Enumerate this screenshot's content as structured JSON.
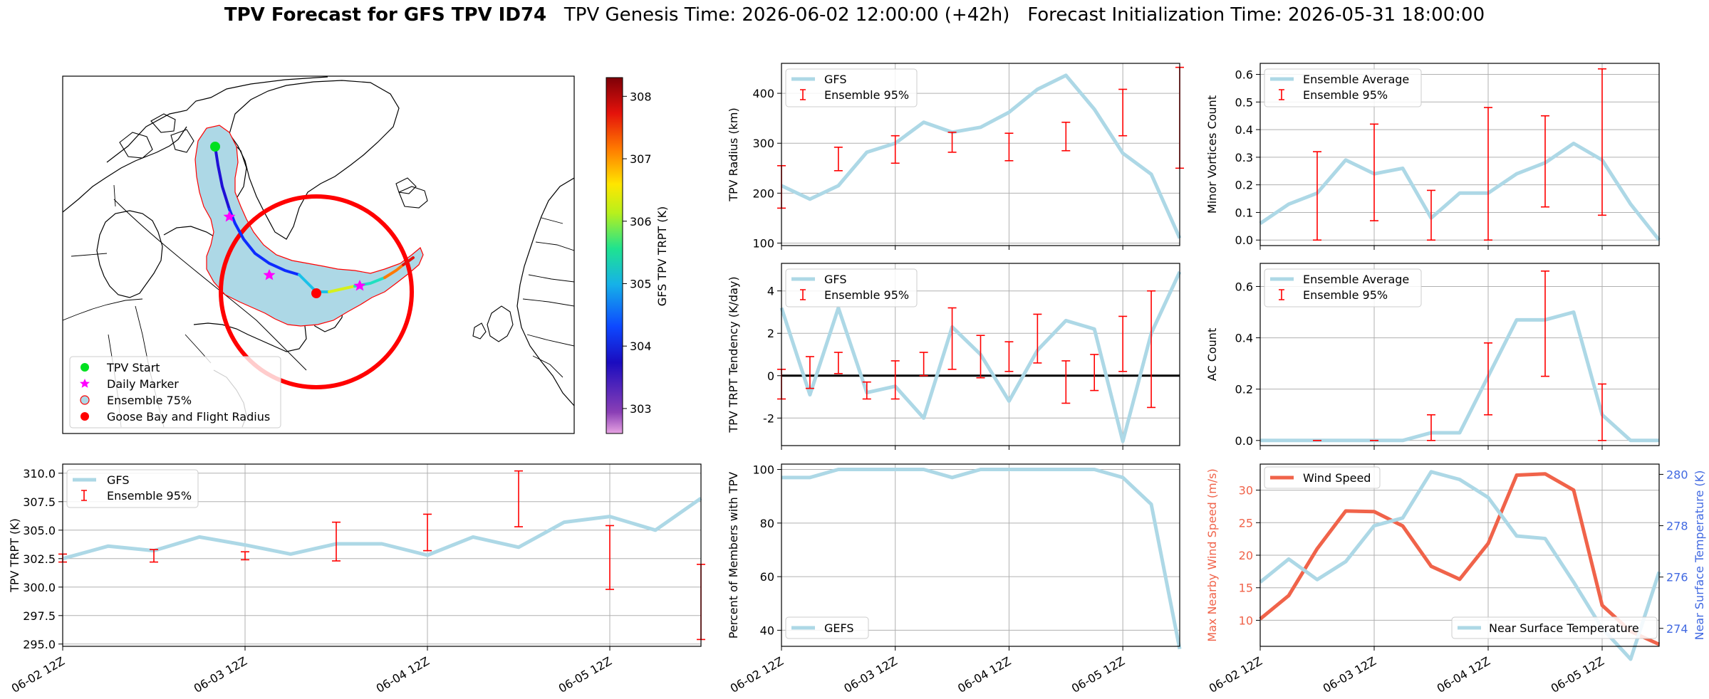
{
  "figure": {
    "title_bold": "TPV Forecast for GFS TPV ID74",
    "title_genesis": "TPV Genesis Time: 2026-06-02 12:00:00 (+42h)",
    "title_init": "Forecast Initialization Time: 2026-05-31 18:00:00"
  },
  "colors": {
    "gfs": "#add8e6",
    "ensemble": "#ff0000",
    "wind": "#f0634a",
    "temp_axis": "#4169e1",
    "goose": "#ff0000"
  },
  "x_tick_labels": [
    "06-02 12Z",
    "06-03 12Z",
    "06-04 12Z",
    "06-05 12Z"
  ],
  "map": {
    "colorbar_label": "GFS TPV TRPT (K)",
    "colorbar_ticks": [
      303,
      304,
      305,
      306,
      307,
      308
    ],
    "colorbar_range": [
      302.6,
      308.3
    ],
    "legend": [
      "TPV Start",
      "Daily Marker",
      "Ensemble 75%",
      "Goose Bay and Flight Radius"
    ]
  },
  "chart_data": [
    {
      "id": "radius",
      "type": "line",
      "ylabel": "TPV Radius (km)",
      "ylim": [
        95,
        460
      ],
      "yticks": [
        100,
        200,
        300,
        400
      ],
      "series": [
        {
          "name": "GFS",
          "values": [
            215,
            188,
            215,
            282,
            300,
            342,
            322,
            332,
            362,
            408,
            436,
            368,
            280,
            238,
            110
          ]
        },
        {
          "name": "Ensemble 95%",
          "type": "errorbar",
          "x": [
            0,
            2,
            4,
            6,
            8,
            10,
            12,
            14
          ],
          "low": [
            170,
            245,
            260,
            282,
            265,
            285,
            315,
            250
          ],
          "high": [
            255,
            292,
            315,
            322,
            320,
            342,
            408,
            452
          ]
        }
      ]
    },
    {
      "id": "minor",
      "type": "line",
      "ylabel": "Minor Vortices Count",
      "ylim": [
        -0.02,
        0.64
      ],
      "yticks": [
        0.0,
        0.1,
        0.2,
        0.3,
        0.4,
        0.5,
        0.6
      ],
      "series": [
        {
          "name": "Ensemble Average",
          "values": [
            0.06,
            0.13,
            0.17,
            0.29,
            0.24,
            0.26,
            0.08,
            0.17,
            0.17,
            0.24,
            0.28,
            0.35,
            0.29,
            0.13,
            0.0
          ]
        },
        {
          "name": "Ensemble 95%",
          "type": "errorbar",
          "x": [
            2,
            4,
            6,
            8,
            10,
            12
          ],
          "low": [
            0.0,
            0.07,
            0.0,
            0.0,
            0.12,
            0.09
          ],
          "high": [
            0.32,
            0.42,
            0.18,
            0.48,
            0.45,
            0.62
          ]
        }
      ]
    },
    {
      "id": "tendency",
      "type": "line",
      "ylabel": "TPV TRPT Tendency (K/day)",
      "ylim": [
        -3.3,
        5.3
      ],
      "yticks": [
        -2,
        0,
        2,
        4
      ],
      "zero_line": true,
      "series": [
        {
          "name": "GFS",
          "values": [
            3.2,
            -0.9,
            3.2,
            -0.8,
            -0.5,
            -2.0,
            2.3,
            1.0,
            -1.2,
            1.2,
            2.6,
            2.2,
            -3.1,
            2.0,
            4.9
          ]
        },
        {
          "name": "Ensemble 95%",
          "type": "errorbar",
          "x": [
            0,
            1,
            2,
            3,
            4,
            5,
            6,
            7,
            8,
            9,
            10,
            11,
            12,
            13
          ],
          "low": [
            -1.1,
            -0.6,
            0.1,
            -1.1,
            -1.1,
            0.0,
            0.3,
            -0.1,
            0.2,
            0.6,
            -1.3,
            -0.7,
            0.2,
            -1.5
          ],
          "high": [
            0.3,
            0.9,
            1.1,
            -0.3,
            0.7,
            1.1,
            3.2,
            1.9,
            1.6,
            2.9,
            0.7,
            1.0,
            2.8,
            4.0
          ]
        }
      ]
    },
    {
      "id": "ac",
      "type": "line",
      "ylabel": "AC Count",
      "ylim": [
        -0.02,
        0.69
      ],
      "yticks": [
        0.0,
        0.2,
        0.4,
        0.6
      ],
      "series": [
        {
          "name": "Ensemble Average",
          "values": [
            0.0,
            0.0,
            0.0,
            0.0,
            0.0,
            0.0,
            0.03,
            0.03,
            0.25,
            0.47,
            0.47,
            0.5,
            0.1,
            0.0,
            0.0
          ]
        },
        {
          "name": "Ensemble 95%",
          "type": "errorbar",
          "x": [
            2,
            4,
            6,
            8,
            10,
            12
          ],
          "low": [
            0.0,
            0.0,
            0.0,
            0.1,
            0.25,
            0.0
          ],
          "high": [
            0.0,
            0.0,
            0.1,
            0.38,
            0.66,
            0.22
          ]
        }
      ]
    },
    {
      "id": "trpt",
      "type": "line",
      "ylabel": "TPV TRPT (K)",
      "ylim": [
        294.8,
        310.8
      ],
      "yticks": [
        295.0,
        297.5,
        300.0,
        302.5,
        305.0,
        307.5,
        310.0
      ],
      "series": [
        {
          "name": "GFS",
          "values": [
            302.5,
            303.6,
            303.2,
            304.4,
            303.7,
            302.9,
            303.8,
            303.8,
            302.8,
            304.4,
            303.5,
            305.7,
            306.2,
            305.0,
            307.8
          ]
        },
        {
          "name": "Ensemble 95%",
          "type": "errorbar",
          "x": [
            0,
            2,
            4,
            6,
            8,
            10,
            12,
            14
          ],
          "low": [
            302.2,
            302.2,
            302.4,
            302.3,
            303.2,
            305.3,
            299.8,
            295.4
          ],
          "high": [
            302.9,
            303.3,
            303.1,
            305.7,
            306.4,
            310.2,
            305.4,
            302.0
          ]
        }
      ]
    },
    {
      "id": "members",
      "type": "line",
      "ylabel": "Percent of Members with TPV",
      "ylim": [
        34,
        102
      ],
      "yticks": [
        40,
        60,
        80,
        100
      ],
      "series": [
        {
          "name": "GEFS",
          "values": [
            97,
            97,
            100,
            100,
            100,
            100,
            97,
            100,
            100,
            100,
            100,
            100,
            97,
            87,
            33
          ]
        }
      ]
    },
    {
      "id": "wind",
      "type": "line",
      "ylabel": "Max Nearby Wind Speed (m/s)",
      "ylabel2": "Near Surface Temperature (K)",
      "ylim": [
        6,
        34
      ],
      "yticks": [
        10,
        15,
        20,
        25,
        30
      ],
      "ylim2": [
        273.3,
        280.4
      ],
      "yticks2": [
        274,
        276,
        278,
        280
      ],
      "series": [
        {
          "name": "Wind Speed",
          "axis": "left",
          "values": [
            10.2,
            13.8,
            21.0,
            26.8,
            26.7,
            24.5,
            18.3,
            16.3,
            21.8,
            32.3,
            32.5,
            30.0,
            12.3,
            8.3,
            6.3
          ]
        },
        {
          "name": "Near Surface Temperature",
          "axis": "right",
          "values": [
            275.8,
            276.7,
            275.9,
            276.6,
            278.0,
            278.3,
            280.1,
            279.8,
            279.1,
            277.6,
            277.5,
            275.8,
            274.0,
            272.8,
            276.2
          ]
        }
      ]
    }
  ]
}
